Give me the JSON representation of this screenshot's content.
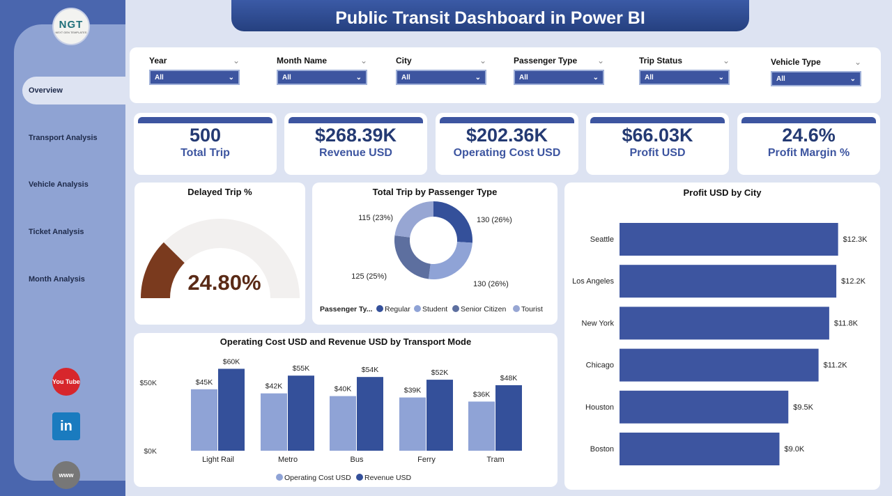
{
  "header": {
    "title": "Public Transit Dashboard in Power BI"
  },
  "logo": {
    "text": "NGT",
    "subtitle": "NEXT GEN TEMPLATES"
  },
  "sidebar": {
    "items": [
      {
        "label": "Overview",
        "active": true
      },
      {
        "label": "Transport Analysis"
      },
      {
        "label": "Vehicle Analysis"
      },
      {
        "label": "Ticket Analysis"
      },
      {
        "label": "Month Analysis"
      }
    ],
    "social": [
      {
        "icon": "youtube-icon",
        "label": "You Tube",
        "color": "#d7262c"
      },
      {
        "icon": "linkedin-icon",
        "label": "in",
        "color": "#1a7bbf"
      },
      {
        "icon": "globe-icon",
        "label": "www",
        "color": "#777777"
      }
    ]
  },
  "filters": [
    {
      "label": "Year",
      "value": "All"
    },
    {
      "label": "Month Name",
      "value": "All"
    },
    {
      "label": "City",
      "value": "All"
    },
    {
      "label": "Passenger Type",
      "value": "All"
    },
    {
      "label": "Trip Status",
      "value": "All"
    },
    {
      "label": "Vehicle Type",
      "value": "All"
    }
  ],
  "kpis": [
    {
      "value": "500",
      "label": "Total Trip"
    },
    {
      "value": "$268.39K",
      "label": "Revenue USD"
    },
    {
      "value": "$202.36K",
      "label": "Operating Cost USD"
    },
    {
      "value": "$66.03K",
      "label": "Profit USD"
    },
    {
      "value": "24.6%",
      "label": "Profit Margin %"
    }
  ],
  "chart_data": [
    {
      "type": "gauge",
      "title": "Delayed Trip %",
      "value": 24.8,
      "value_label": "24.80%",
      "range": [
        0,
        100
      ],
      "colors": {
        "fill": "#7a3a1e",
        "track": "#f2f0ef"
      }
    },
    {
      "type": "pie",
      "title": "Total Trip by Passenger Type",
      "legend_title": "Passenger Ty...",
      "legend": "bottom",
      "slices": [
        {
          "name": "Regular",
          "value": 130,
          "label": "130 (26%)",
          "color": "#34509a"
        },
        {
          "name": "Student",
          "value": 130,
          "label": "130 (26%)",
          "color": "#8fa3d6"
        },
        {
          "name": "Senior Citizen",
          "value": 125,
          "label": "125 (25%)",
          "color": "#5d6f9f"
        },
        {
          "name": "Tourist",
          "value": 115,
          "label": "115 (23%)",
          "color": "#97a6d3"
        }
      ]
    },
    {
      "type": "bar",
      "title": "Operating Cost USD and Revenue USD by Transport Mode",
      "categories": [
        "Light Rail",
        "Metro",
        "Bus",
        "Ferry",
        "Tram"
      ],
      "yticks": [
        {
          "value": 0,
          "label": "$0K"
        },
        {
          "value": 50,
          "label": "$50K"
        }
      ],
      "ylim": [
        0,
        62
      ],
      "legend": "bottom",
      "series": [
        {
          "name": "Operating Cost USD",
          "color": "#8fa3d6",
          "values": [
            45,
            42,
            40,
            39,
            36
          ],
          "labels": [
            "$45K",
            "$42K",
            "$40K",
            "$39K",
            "$36K"
          ]
        },
        {
          "name": "Revenue USD",
          "color": "#34509a",
          "values": [
            60,
            55,
            54,
            52,
            48
          ],
          "labels": [
            "$60K",
            "$55K",
            "$54K",
            "$52K",
            "$48K"
          ]
        }
      ]
    },
    {
      "type": "bar",
      "orientation": "horizontal",
      "title": "Profit USD by City",
      "categories": [
        "Seattle",
        "Los Angeles",
        "New York",
        "Chicago",
        "Houston",
        "Boston"
      ],
      "values": [
        12.3,
        12.2,
        11.8,
        11.2,
        9.5,
        9.0
      ],
      "labels": [
        "$12.3K",
        "$12.2K",
        "$11.8K",
        "$11.2K",
        "$9.5K",
        "$9.0K"
      ],
      "color": "#3d55a0"
    }
  ]
}
